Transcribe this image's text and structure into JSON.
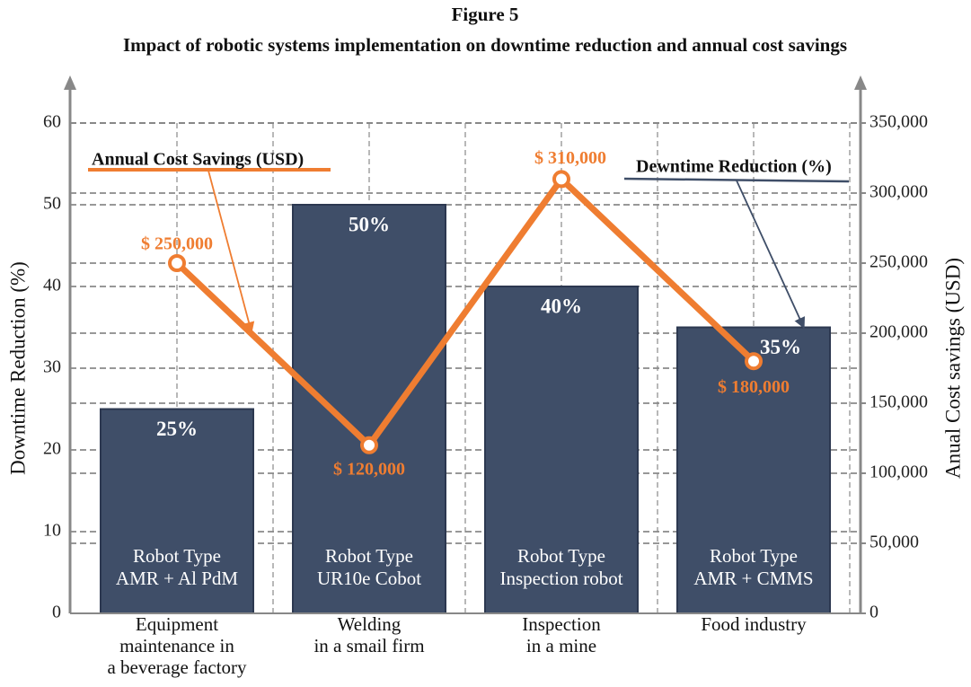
{
  "chart_data": {
    "type": "bar",
    "title": "Figure 5",
    "subtitle": "Impact of robotic systems implementation on downtime reduction and annual cost savings",
    "ylabel": "Downtime Reduction (%)",
    "y2label": "Anual Cost savings (USD)",
    "categories": [
      [
        "Equipment",
        "maintenance in",
        "a beverage factory"
      ],
      [
        "Welding",
        "in a smail firm"
      ],
      [
        "Inspection",
        "in a mine"
      ],
      [
        "Food industry"
      ]
    ],
    "bar_texts": [
      [
        "Robot Type",
        "AMR + Al PdM"
      ],
      [
        "Robot Type",
        "UR10e Cobot"
      ],
      [
        "Robot Type",
        "Inspection robot"
      ],
      [
        "Robot Type",
        "AMR + CMMS"
      ]
    ],
    "series": [
      {
        "name": "Dewntime Reduction (%)",
        "type": "bar",
        "color": "#3f4e68",
        "values": [
          25,
          50,
          40,
          35
        ],
        "value_labels": [
          "25%",
          "50%",
          "40%",
          "35%"
        ]
      },
      {
        "name": "Annual Cost Savings (USD)",
        "type": "line",
        "axis": "y2",
        "color": "#ef7d31",
        "values": [
          250000,
          120000,
          310000,
          180000
        ],
        "value_labels": [
          "$ 250,000",
          "$ 120,000",
          "$ 310,000",
          "$ 180,000"
        ]
      }
    ],
    "ylim": [
      0,
      60
    ],
    "yticks": [
      0,
      10,
      20,
      30,
      40,
      50,
      60
    ],
    "y2lim": [
      0,
      350000
    ],
    "y2ticks": [
      0,
      {
        "value": 50000,
        "label": "50,000"
      },
      {
        "value": 100000,
        "label": "100,000"
      },
      {
        "value": 150000,
        "label": "150,000"
      },
      {
        "value": 200000,
        "label": "200,000"
      },
      {
        "value": 250000,
        "label": "250,000"
      },
      {
        "value": 300000,
        "label": "300,000"
      },
      {
        "value": 350000,
        "label": "350,000"
      }
    ],
    "grid": true
  }
}
